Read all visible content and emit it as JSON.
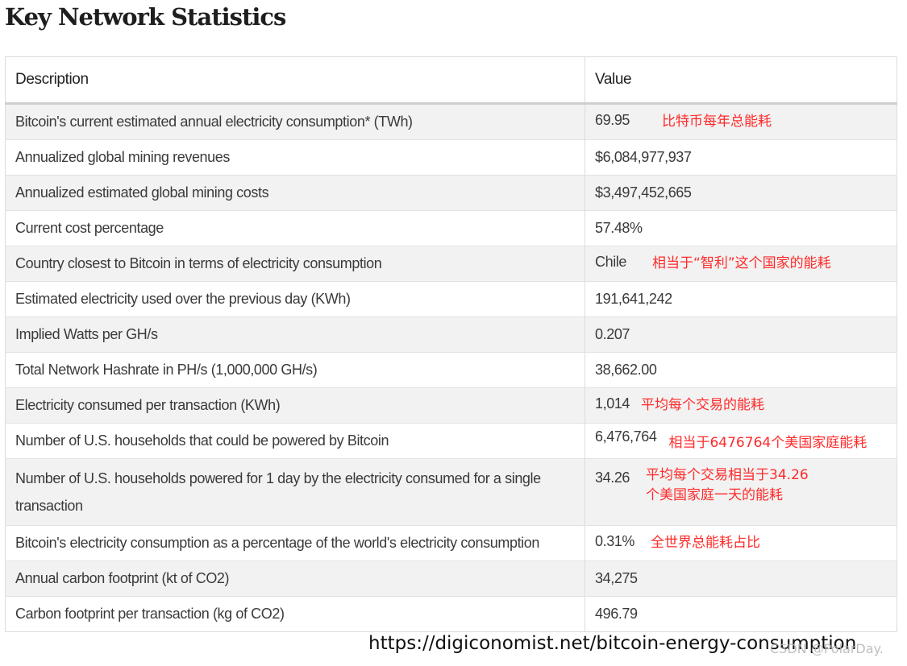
{
  "title": "Key Network Statistics",
  "table": {
    "headers": {
      "description": "Description",
      "value": "Value"
    },
    "rows": [
      {
        "description": "Bitcoin's current estimated annual electricity consumption* (TWh)",
        "value": "69.95",
        "note": "比特币每年总能耗"
      },
      {
        "description": "Annualized global mining revenues",
        "value": "$6,084,977,937",
        "note": ""
      },
      {
        "description": "Annualized estimated global mining costs",
        "value": "$3,497,452,665",
        "note": ""
      },
      {
        "description": "Current cost percentage",
        "value": "57.48%",
        "note": ""
      },
      {
        "description": "Country closest to Bitcoin in terms of electricity consumption",
        "value": "Chile",
        "note": "相当于“智利”这个国家的能耗"
      },
      {
        "description": "Estimated electricity used over the previous day (KWh)",
        "value": "191,641,242",
        "note": ""
      },
      {
        "description": "Implied Watts per GH/s",
        "value": "0.207",
        "note": ""
      },
      {
        "description": "Total Network Hashrate in PH/s (1,000,000 GH/s)",
        "value": "38,662.00",
        "note": ""
      },
      {
        "description": "Electricity consumed per transaction (KWh)",
        "value": "1,014",
        "note": "平均每个交易的能耗"
      },
      {
        "description": "Number of U.S. households that could be powered by Bitcoin",
        "value": "6,476,764",
        "note": "相当于6476764个美国家庭能耗"
      },
      {
        "description": "Number of U.S. households powered for 1 day by the electricity consumed for a single transaction",
        "value": "34.26",
        "note": "平均每个交易相当于34.26\n个美国家庭一天的能耗"
      },
      {
        "description": "Bitcoin's electricity consumption as a percentage of the world's electricity consumption",
        "value": "0.31%",
        "note": "全世界总能耗占比"
      },
      {
        "description": "Annual carbon footprint (kt of CO2)",
        "value": "34,275",
        "note": ""
      },
      {
        "description": "Carbon footprint per transaction (kg of CO2)",
        "value": "496.79",
        "note": ""
      }
    ]
  },
  "source_url": "https://digiconomist.net/bitcoin-energy-consumption",
  "watermark": "CSDN @PolarDay."
}
